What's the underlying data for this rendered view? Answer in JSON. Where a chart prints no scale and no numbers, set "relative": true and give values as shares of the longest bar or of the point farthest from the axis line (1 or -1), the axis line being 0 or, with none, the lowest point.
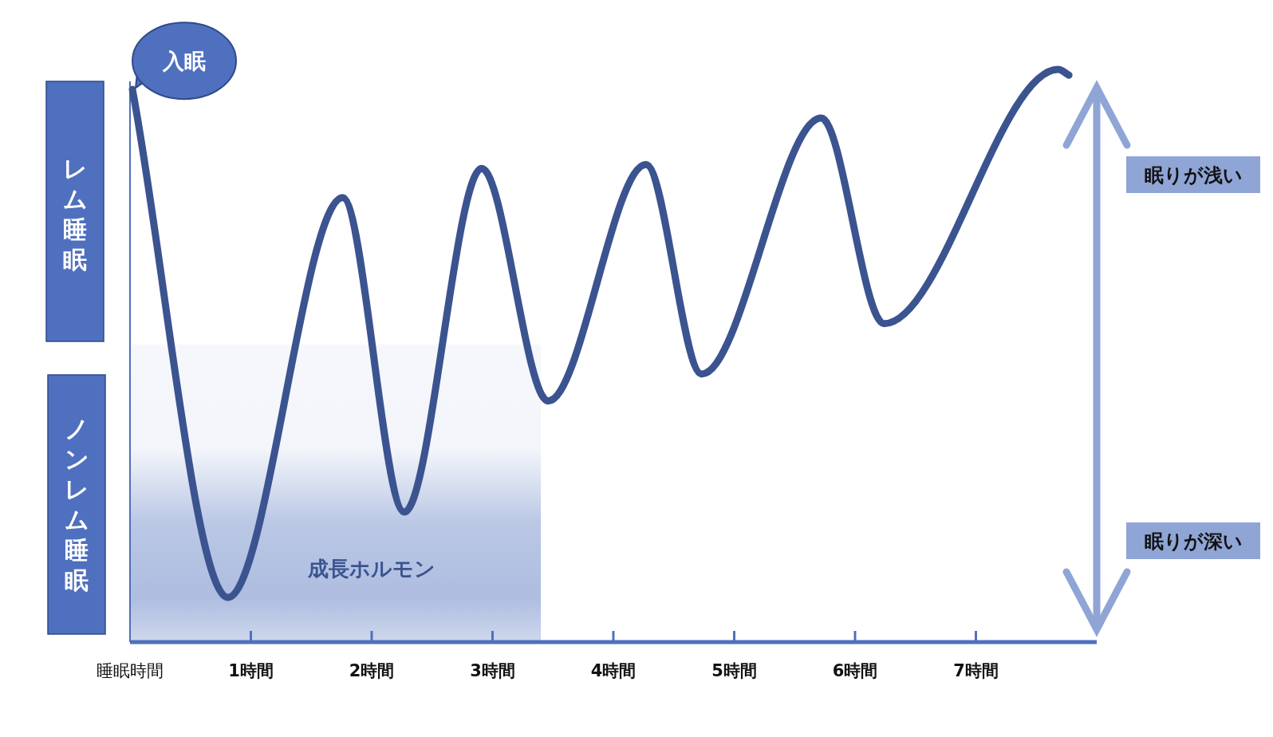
{
  "chart_data": {
    "type": "line",
    "relative": true,
    "xlim": [
      0,
      8
    ],
    "xticks": [
      {
        "value": 0,
        "label": "睡眠時間"
      },
      {
        "value": 1,
        "label": "1時間"
      },
      {
        "value": 2,
        "label": "2時間"
      },
      {
        "value": 3,
        "label": "3時間"
      },
      {
        "value": 4,
        "label": "4時間"
      },
      {
        "value": 5,
        "label": "5時間"
      },
      {
        "value": 6,
        "label": "6時間"
      },
      {
        "value": 7,
        "label": "7時間"
      }
    ],
    "series": [
      {
        "color": "#3b5490",
        "x": [
          0.02,
          0.81,
          1.76,
          2.27,
          2.91,
          3.46,
          4.27,
          4.73,
          5.72,
          6.24,
          7.68,
          7.77
        ],
        "values": [
          0.965,
          0.078,
          0.776,
          0.227,
          0.827,
          0.421,
          0.834,
          0.468,
          0.915,
          0.556,
          1.0,
          0.99
        ]
      }
    ],
    "bands": [
      {
        "axis": "x",
        "from": 0,
        "to": 3.4,
        "label": "成長ホルモン",
        "color": "#aebde0"
      }
    ],
    "annotations": [
      {
        "text": "入眠",
        "x": 0.02,
        "y": 0.965
      },
      "レム睡眠",
      "ノンレム睡眠",
      "眠りが浅い",
      "眠りが深い"
    ]
  }
}
